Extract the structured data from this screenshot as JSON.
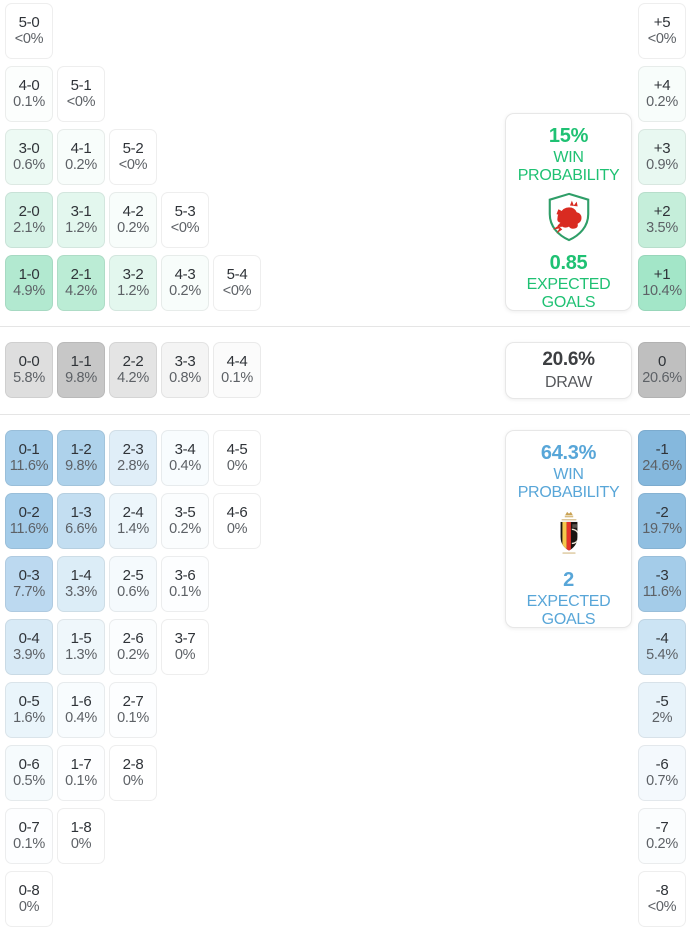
{
  "chart_data": {
    "type": "heatmap",
    "layout": {
      "columns_axis": "home goals - away goals scorelines",
      "sections": [
        "home-win",
        "draw",
        "away-win"
      ],
      "legend_position": "right"
    },
    "colors": {
      "home_accent": "#1fc173",
      "away_accent": "#58a6d8",
      "draw_cell": "#bfbfbf",
      "divider": "#e5e5e5"
    },
    "home": {
      "rows": [
        [
          {
            "score": "5-0",
            "pct": "<0%",
            "bg": "#ffffff"
          }
        ],
        [
          {
            "score": "4-0",
            "pct": "0.1%",
            "bg": "#fcfefd"
          },
          {
            "score": "5-1",
            "pct": "<0%",
            "bg": "#ffffff"
          }
        ],
        [
          {
            "score": "3-0",
            "pct": "0.6%",
            "bg": "#edfaf4"
          },
          {
            "score": "4-1",
            "pct": "0.2%",
            "bg": "#f8fdfb"
          },
          {
            "score": "5-2",
            "pct": "<0%",
            "bg": "#ffffff"
          }
        ],
        [
          {
            "score": "2-0",
            "pct": "2.1%",
            "bg": "#d7f3e7"
          },
          {
            "score": "3-1",
            "pct": "1.2%",
            "bg": "#e3f7ee"
          },
          {
            "score": "4-2",
            "pct": "0.2%",
            "bg": "#f8fdfb"
          },
          {
            "score": "5-3",
            "pct": "<0%",
            "bg": "#ffffff"
          }
        ],
        [
          {
            "score": "1-0",
            "pct": "4.9%",
            "bg": "#b2e9d0"
          },
          {
            "score": "2-1",
            "pct": "4.2%",
            "bg": "#bbecd5"
          },
          {
            "score": "3-2",
            "pct": "1.2%",
            "bg": "#e3f7ee"
          },
          {
            "score": "4-3",
            "pct": "0.2%",
            "bg": "#f8fdfb"
          },
          {
            "score": "5-4",
            "pct": "<0%",
            "bg": "#ffffff"
          }
        ]
      ],
      "diffs": [
        {
          "score": "+5",
          "pct": "<0%",
          "bg": "#ffffff"
        },
        {
          "score": "+4",
          "pct": "0.2%",
          "bg": "#f8fdfb"
        },
        {
          "score": "+3",
          "pct": "0.9%",
          "bg": "#e8f8f1"
        },
        {
          "score": "+2",
          "pct": "3.5%",
          "bg": "#c5eeda"
        },
        {
          "score": "+1",
          "pct": "10.4%",
          "bg": "#a3e6c8"
        }
      ],
      "summary": {
        "win_value": "15%",
        "win_label": "WIN PROBABILITY",
        "goals_value": "0.85",
        "goals_label": "EXPECTED GOALS",
        "crest_icon": "wales-crest"
      }
    },
    "draw": {
      "rows": [
        [
          {
            "score": "0-0",
            "pct": "5.8%",
            "bg": "#dedede"
          },
          {
            "score": "1-1",
            "pct": "9.8%",
            "bg": "#c7c7c7"
          },
          {
            "score": "2-2",
            "pct": "4.2%",
            "bg": "#e4e4e4"
          },
          {
            "score": "3-3",
            "pct": "0.8%",
            "bg": "#f4f4f4"
          },
          {
            "score": "4-4",
            "pct": "0.1%",
            "bg": "#fbfbfb"
          }
        ]
      ],
      "diffs": [
        {
          "score": "0",
          "pct": "20.6%",
          "bg": "#bfbfbf"
        }
      ],
      "summary": {
        "value": "20.6%",
        "label": "DRAW"
      }
    },
    "away": {
      "rows": [
        [
          {
            "score": "0-1",
            "pct": "11.6%",
            "bg": "#a4cce9"
          },
          {
            "score": "1-2",
            "pct": "9.8%",
            "bg": "#aed2eb"
          },
          {
            "score": "2-3",
            "pct": "2.8%",
            "bg": "#e0eef8"
          },
          {
            "score": "3-4",
            "pct": "0.4%",
            "bg": "#f8fcfe"
          },
          {
            "score": "4-5",
            "pct": "0%",
            "bg": "#ffffff"
          }
        ],
        [
          {
            "score": "0-2",
            "pct": "11.6%",
            "bg": "#a4cce9"
          },
          {
            "score": "1-3",
            "pct": "6.6%",
            "bg": "#c3def1"
          },
          {
            "score": "2-4",
            "pct": "1.4%",
            "bg": "#edf6fb"
          },
          {
            "score": "3-5",
            "pct": "0.2%",
            "bg": "#fbfdfe"
          },
          {
            "score": "4-6",
            "pct": "0%",
            "bg": "#ffffff"
          }
        ],
        [
          {
            "score": "0-3",
            "pct": "7.7%",
            "bg": "#bcd9f0"
          },
          {
            "score": "1-4",
            "pct": "3.3%",
            "bg": "#dcedf7"
          },
          {
            "score": "2-5",
            "pct": "0.6%",
            "bg": "#f5fafd"
          },
          {
            "score": "3-6",
            "pct": "0.1%",
            "bg": "#fdfeff"
          }
        ],
        [
          {
            "score": "0-4",
            "pct": "3.9%",
            "bg": "#d8eaf6"
          },
          {
            "score": "1-5",
            "pct": "1.3%",
            "bg": "#eff7fb"
          },
          {
            "score": "2-6",
            "pct": "0.2%",
            "bg": "#fbfdfe"
          },
          {
            "score": "3-7",
            "pct": "0%",
            "bg": "#ffffff"
          }
        ],
        [
          {
            "score": "0-5",
            "pct": "1.6%",
            "bg": "#eaf5fb"
          },
          {
            "score": "1-6",
            "pct": "0.4%",
            "bg": "#f8fcfe"
          },
          {
            "score": "2-7",
            "pct": "0.1%",
            "bg": "#fdfeff"
          }
        ],
        [
          {
            "score": "0-6",
            "pct": "0.5%",
            "bg": "#f6fbfd"
          },
          {
            "score": "1-7",
            "pct": "0.1%",
            "bg": "#fdfeff"
          },
          {
            "score": "2-8",
            "pct": "0%",
            "bg": "#ffffff"
          }
        ],
        [
          {
            "score": "0-7",
            "pct": "0.1%",
            "bg": "#fdfeff"
          },
          {
            "score": "1-8",
            "pct": "0%",
            "bg": "#ffffff"
          }
        ],
        [
          {
            "score": "0-8",
            "pct": "0%",
            "bg": "#ffffff"
          }
        ]
      ],
      "diffs": [
        {
          "score": "-1",
          "pct": "24.6%",
          "bg": "#85b8dd"
        },
        {
          "score": "-2",
          "pct": "19.7%",
          "bg": "#90bfe1"
        },
        {
          "score": "-3",
          "pct": "11.6%",
          "bg": "#a4cce9"
        },
        {
          "score": "-4",
          "pct": "5.4%",
          "bg": "#cce4f4"
        },
        {
          "score": "-5",
          "pct": "2%",
          "bg": "#e8f3fa"
        },
        {
          "score": "-6",
          "pct": "0.7%",
          "bg": "#f4f9fd"
        },
        {
          "score": "-7",
          "pct": "0.2%",
          "bg": "#fbfdfe"
        },
        {
          "score": "-8",
          "pct": "<0%",
          "bg": "#ffffff"
        }
      ],
      "summary": {
        "win_value": "64.3%",
        "win_label": "WIN PROBABILITY",
        "goals_value": "2",
        "goals_label": "EXPECTED GOALS",
        "crest_icon": "belgium-crest"
      }
    }
  }
}
